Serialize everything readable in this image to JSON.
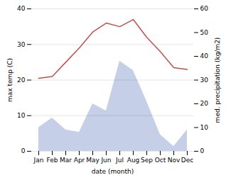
{
  "chart_data": {
    "type": "line",
    "categories": [
      "Jan",
      "Feb",
      "Mar",
      "Apr",
      "May",
      "Jun",
      "Jul",
      "Aug",
      "Sep",
      "Oct",
      "Nov",
      "Dec"
    ],
    "series": [
      {
        "type": "area",
        "axis": "y2",
        "color": "#c5cfe8",
        "values": [
          10.0,
          14.0,
          9.0,
          8.0,
          20.0,
          17.0,
          38.0,
          34.0,
          21.0,
          7.0,
          2.0,
          9.0
        ]
      },
      {
        "type": "line",
        "color": "#c0504d",
        "values": [
          20.5,
          21.0,
          25.0,
          29.0,
          33.5,
          36.0,
          35.0,
          37.0,
          32.0,
          28.0,
          23.5,
          23.0
        ]
      }
    ],
    "xlabel": "date (month)",
    "ylabel": "max temp (C)",
    "y2label": "med. precipitation (kg/m2)",
    "ylim": [
      0,
      40
    ],
    "yticks": [
      0,
      10,
      20,
      30,
      40
    ],
    "y2lim": [
      0,
      60
    ],
    "y2ticks": [
      0,
      10,
      20,
      30,
      40,
      50,
      60
    ],
    "grid": true
  }
}
